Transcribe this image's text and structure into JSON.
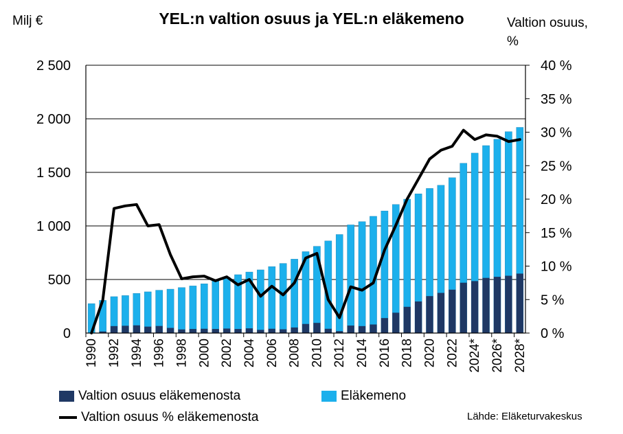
{
  "chart_data": {
    "type": "bar",
    "title": "YEL:n valtion osuus ja YEL:n eläkemeno",
    "ylabel_left": "Milj €",
    "ylabel_right": "Valtion osuus,\n%",
    "ylim_left": [
      0,
      2500
    ],
    "ylim_right": [
      0,
      40
    ],
    "left_ticks": [
      "0",
      "500",
      "1 000",
      "1 500",
      "2 000",
      "2 500"
    ],
    "right_ticks": [
      "0 %",
      "5 %",
      "10 %",
      "15 %",
      "20 %",
      "25 %",
      "30 %",
      "35 %",
      "40 %"
    ],
    "x_tick_labels": [
      "1990",
      "1992",
      "1994",
      "1996",
      "1998",
      "2000",
      "2002",
      "2004",
      "2006",
      "2008",
      "2010",
      "2012",
      "2014",
      "2016",
      "2018",
      "2020",
      "2022",
      "2024*",
      "2026*",
      "2028*"
    ],
    "categories": [
      "1990",
      "1991",
      "1992",
      "1993",
      "1994",
      "1995",
      "1996",
      "1997",
      "1998",
      "1999",
      "2000",
      "2001",
      "2002",
      "2003",
      "2004",
      "2005",
      "2006",
      "2007",
      "2008",
      "2009",
      "2010",
      "2011",
      "2012",
      "2013",
      "2014",
      "2015",
      "2016",
      "2017",
      "2018",
      "2019",
      "2020",
      "2021",
      "2022",
      "2023",
      "2024",
      "2025",
      "2026",
      "2027",
      "2028"
    ],
    "series": [
      {
        "name": "Valtion osuus eläkemenosta",
        "type": "bar",
        "axis": "left",
        "color": "#1f3864",
        "values": [
          2,
          15,
          65,
          68,
          72,
          60,
          66,
          48,
          34,
          38,
          40,
          38,
          42,
          38,
          44,
          30,
          40,
          35,
          52,
          85,
          95,
          40,
          18,
          70,
          65,
          80,
          140,
          190,
          245,
          295,
          345,
          375,
          405,
          470,
          485,
          515,
          525,
          535,
          555
        ]
      },
      {
        "name": "Eläkemeno",
        "type": "bar",
        "axis": "left",
        "color": "#1cb0ec",
        "values": [
          275,
          305,
          340,
          350,
          370,
          385,
          400,
          410,
          425,
          440,
          460,
          490,
          520,
          545,
          570,
          590,
          620,
          650,
          690,
          760,
          810,
          860,
          920,
          1010,
          1040,
          1090,
          1140,
          1200,
          1250,
          1300,
          1350,
          1380,
          1450,
          1585,
          1680,
          1750,
          1810,
          1880,
          1920
        ]
      },
      {
        "name": "Valtion osuus % eläkemenosta",
        "type": "line",
        "axis": "right",
        "color": "#000000",
        "values": [
          0,
          4.9,
          18.6,
          19.0,
          19.2,
          16.0,
          16.2,
          11.7,
          8.1,
          8.4,
          8.5,
          7.8,
          8.4,
          7.2,
          8.0,
          5.5,
          7.0,
          5.7,
          7.5,
          11.2,
          11.9,
          5.0,
          2.3,
          6.9,
          6.4,
          7.5,
          12.4,
          16.1,
          20.0,
          23.0,
          26.0,
          27.3,
          27.9,
          30.3,
          28.9,
          29.6,
          29.4,
          28.6,
          28.9
        ]
      }
    ],
    "grid": true,
    "legend_position": "bottom",
    "source": "Lähde: Eläketurvakeskus"
  }
}
